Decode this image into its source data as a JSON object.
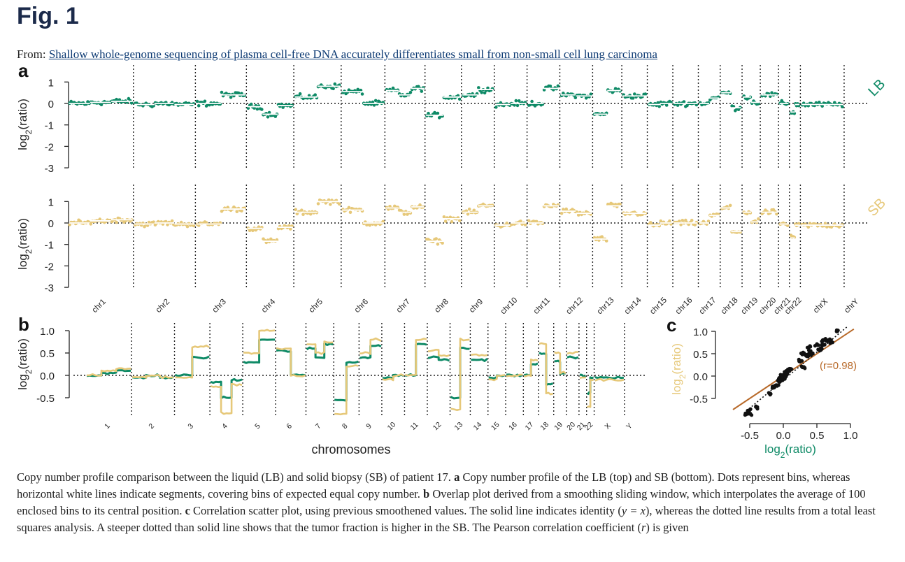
{
  "header": {
    "fig_label": "Fig. 1",
    "from_prefix": "From:",
    "article_title": "Shallow whole-genome sequencing of plasma cell-free DNA accurately differentiates small from non-small cell lung carcinoma"
  },
  "caption": {
    "intro": "Copy number profile comparison between the liquid (LB) and solid biopsy (SB) of patient 17.",
    "a_label": "a",
    "a_text": "Copy number profile of the LB (top) and SB (bottom). Dots represent bins, whereas horizontal white lines indicate segments, covering bins of expected equal copy number.",
    "b_label": "b",
    "b_text": "Overlap plot derived from a smoothing sliding window, which interpolates the average of 100 enclosed bins to its central position.",
    "c_label": "c",
    "c_text_1": "Correlation scatter plot, using previous smoothened values. The solid line indicates identity (",
    "c_formula": "y = x",
    "c_text_2": "), whereas the dotted line results from a total least squares analysis. A steeper dotted than solid line shows that the tumor fraction is higher in the SB. The Pearson correlation coefficient (",
    "c_r": "r",
    "c_text_3": ") is given"
  },
  "chart_data": [
    {
      "panel": "a",
      "type": "scatter",
      "ylabel_base": "log",
      "ylabel_sub": "2",
      "ylabel_rest": "(ratio)",
      "ylim": [
        -3,
        1.3
      ],
      "yticks": [
        1,
        0,
        -1,
        -2,
        -3
      ],
      "chromosomes": [
        "chr1",
        "chr2",
        "chr3",
        "chr4",
        "chr5",
        "chr6",
        "chr7",
        "chr8",
        "chr9",
        "chr10",
        "chr11",
        "chr12",
        "chr13",
        "chr14",
        "chr15",
        "chr16",
        "chr17",
        "chr18",
        "chr19",
        "chr20",
        "chr21",
        "chr22",
        "chrX",
        "chrY"
      ],
      "colors": {
        "LB": "#0e8a66",
        "SB": "#e6c879"
      },
      "series": [
        {
          "name": "LB",
          "segments": [
            {
              "chr": "chr1",
              "values": [
                0.0,
                0.05,
                0.1
              ]
            },
            {
              "chr": "chr2",
              "values": [
                -0.05,
                0.0,
                -0.05
              ]
            },
            {
              "chr": "chr3",
              "values": [
                0.0,
                0.4
              ]
            },
            {
              "chr": "chr4",
              "values": [
                -0.15,
                -0.5,
                -0.1
              ]
            },
            {
              "chr": "chr5",
              "values": [
                0.3,
                0.8
              ]
            },
            {
              "chr": "chr6",
              "values": [
                0.55,
                0.0
              ]
            },
            {
              "chr": "chr7",
              "values": [
                0.6,
                0.4,
                0.7
              ]
            },
            {
              "chr": "chr8",
              "values": [
                -0.55,
                0.3
              ]
            },
            {
              "chr": "chr9",
              "values": [
                0.4,
                0.65
              ]
            },
            {
              "chr": "chr10",
              "values": [
                -0.05,
                0.0
              ]
            },
            {
              "chr": "chr11",
              "values": [
                0.0,
                0.7
              ]
            },
            {
              "chr": "chr12",
              "values": [
                0.4,
                0.35
              ]
            },
            {
              "chr": "chr13",
              "values": [
                -0.5,
                0.6
              ]
            },
            {
              "chr": "chr14",
              "values": [
                0.35
              ]
            },
            {
              "chr": "chr15",
              "values": [
                -0.05,
                0.0
              ]
            },
            {
              "chr": "chr16",
              "values": [
                0.0
              ]
            },
            {
              "chr": "chr17",
              "values": [
                0.0,
                0.25
              ]
            },
            {
              "chr": "chr18",
              "values": [
                0.5,
                -0.2
              ]
            },
            {
              "chr": "chr19",
              "values": [
                0.3,
                0.05
              ]
            },
            {
              "chr": "chr20",
              "values": [
                0.4
              ]
            },
            {
              "chr": "chr21",
              "values": [
                0.0
              ]
            },
            {
              "chr": "chr22",
              "values": [
                -0.4,
                -0.05
              ]
            },
            {
              "chr": "chrX",
              "values": [
                -0.05
              ]
            },
            {
              "chr": "chrY",
              "values": []
            }
          ]
        },
        {
          "name": "SB",
          "segments": [
            {
              "chr": "chr1",
              "values": [
                0.0,
                0.1,
                0.15
              ]
            },
            {
              "chr": "chr2",
              "values": [
                -0.05,
                0.0,
                -0.05
              ]
            },
            {
              "chr": "chr3",
              "values": [
                -0.05,
                0.65
              ]
            },
            {
              "chr": "chr4",
              "values": [
                -0.25,
                -0.85,
                -0.2
              ]
            },
            {
              "chr": "chr5",
              "values": [
                0.5,
                1.0
              ]
            },
            {
              "chr": "chr6",
              "values": [
                0.6,
                0.0
              ]
            },
            {
              "chr": "chr7",
              "values": [
                0.7,
                0.5,
                0.75
              ]
            },
            {
              "chr": "chr8",
              "values": [
                -0.85,
                0.2
              ]
            },
            {
              "chr": "chr9",
              "values": [
                0.5,
                0.8
              ]
            },
            {
              "chr": "chr10",
              "values": [
                -0.1,
                0.0
              ]
            },
            {
              "chr": "chr11",
              "values": [
                0.0,
                0.8
              ]
            },
            {
              "chr": "chr12",
              "values": [
                0.55,
                0.45
              ]
            },
            {
              "chr": "chr13",
              "values": [
                -0.75,
                0.8
              ]
            },
            {
              "chr": "chr14",
              "values": [
                0.45
              ]
            },
            {
              "chr": "chr15",
              "values": [
                -0.1,
                0.0
              ]
            },
            {
              "chr": "chr16",
              "values": [
                0.0
              ]
            },
            {
              "chr": "chr17",
              "values": [
                0.0,
                0.35
              ]
            },
            {
              "chr": "chr18",
              "values": [
                0.7,
                -0.4
              ]
            },
            {
              "chr": "chr19",
              "values": [
                0.5,
                0.05
              ]
            },
            {
              "chr": "chr20",
              "values": [
                0.5
              ]
            },
            {
              "chr": "chr21",
              "values": [
                -0.05
              ]
            },
            {
              "chr": "chr22",
              "values": [
                -0.7,
                -0.1
              ]
            },
            {
              "chr": "chrX",
              "values": [
                -0.1
              ]
            },
            {
              "chr": "chrY",
              "values": []
            }
          ]
        }
      ]
    },
    {
      "panel": "b",
      "type": "line",
      "ylabel_base": "log",
      "ylabel_sub": "2",
      "ylabel_rest": "(ratio)",
      "xlabel": "chromosomes",
      "ylim": [
        -0.85,
        1.15
      ],
      "yticks": [
        1.0,
        0.5,
        0.0,
        -0.5
      ],
      "yticklabels": [
        "1.0",
        "0.5",
        "0.0",
        "-0.5"
      ],
      "chromosomes": [
        "1",
        "2",
        "3",
        "4",
        "5",
        "6",
        "7",
        "8",
        "9",
        "10",
        "11",
        "12",
        "13",
        "14",
        "15",
        "16",
        "17",
        "18",
        "19",
        "20",
        "21",
        "22",
        "X",
        "Y"
      ],
      "series": [
        {
          "name": "LB",
          "color": "#0e8a66"
        },
        {
          "name": "SB",
          "color": "#e6c879"
        }
      ]
    },
    {
      "panel": "c",
      "type": "scatter",
      "xlabel_base": "log",
      "xlabel_sub": "2",
      "xlabel_rest": "(ratio)",
      "ylabel_base": "log",
      "ylabel_sub": "2",
      "ylabel_rest": "(ratio)",
      "xlim": [
        -0.75,
        1.05
      ],
      "ylim": [
        -0.85,
        1.15
      ],
      "xticks": [
        -0.5,
        0.0,
        0.5,
        1.0
      ],
      "xticklabels": [
        "-0.5",
        "0.0",
        "0.5",
        "1.0"
      ],
      "yticks": [
        1.0,
        0.5,
        0.0,
        -0.5
      ],
      "yticklabels": [
        "1.0",
        "0.5",
        "0.0",
        "-0.5"
      ],
      "annotation": "(r=0.98)",
      "r": 0.98,
      "colors": {
        "xaxis": "#0e8a66",
        "yaxis": "#e6c879",
        "points": "#111111",
        "identity": "#b86a2a"
      }
    }
  ]
}
